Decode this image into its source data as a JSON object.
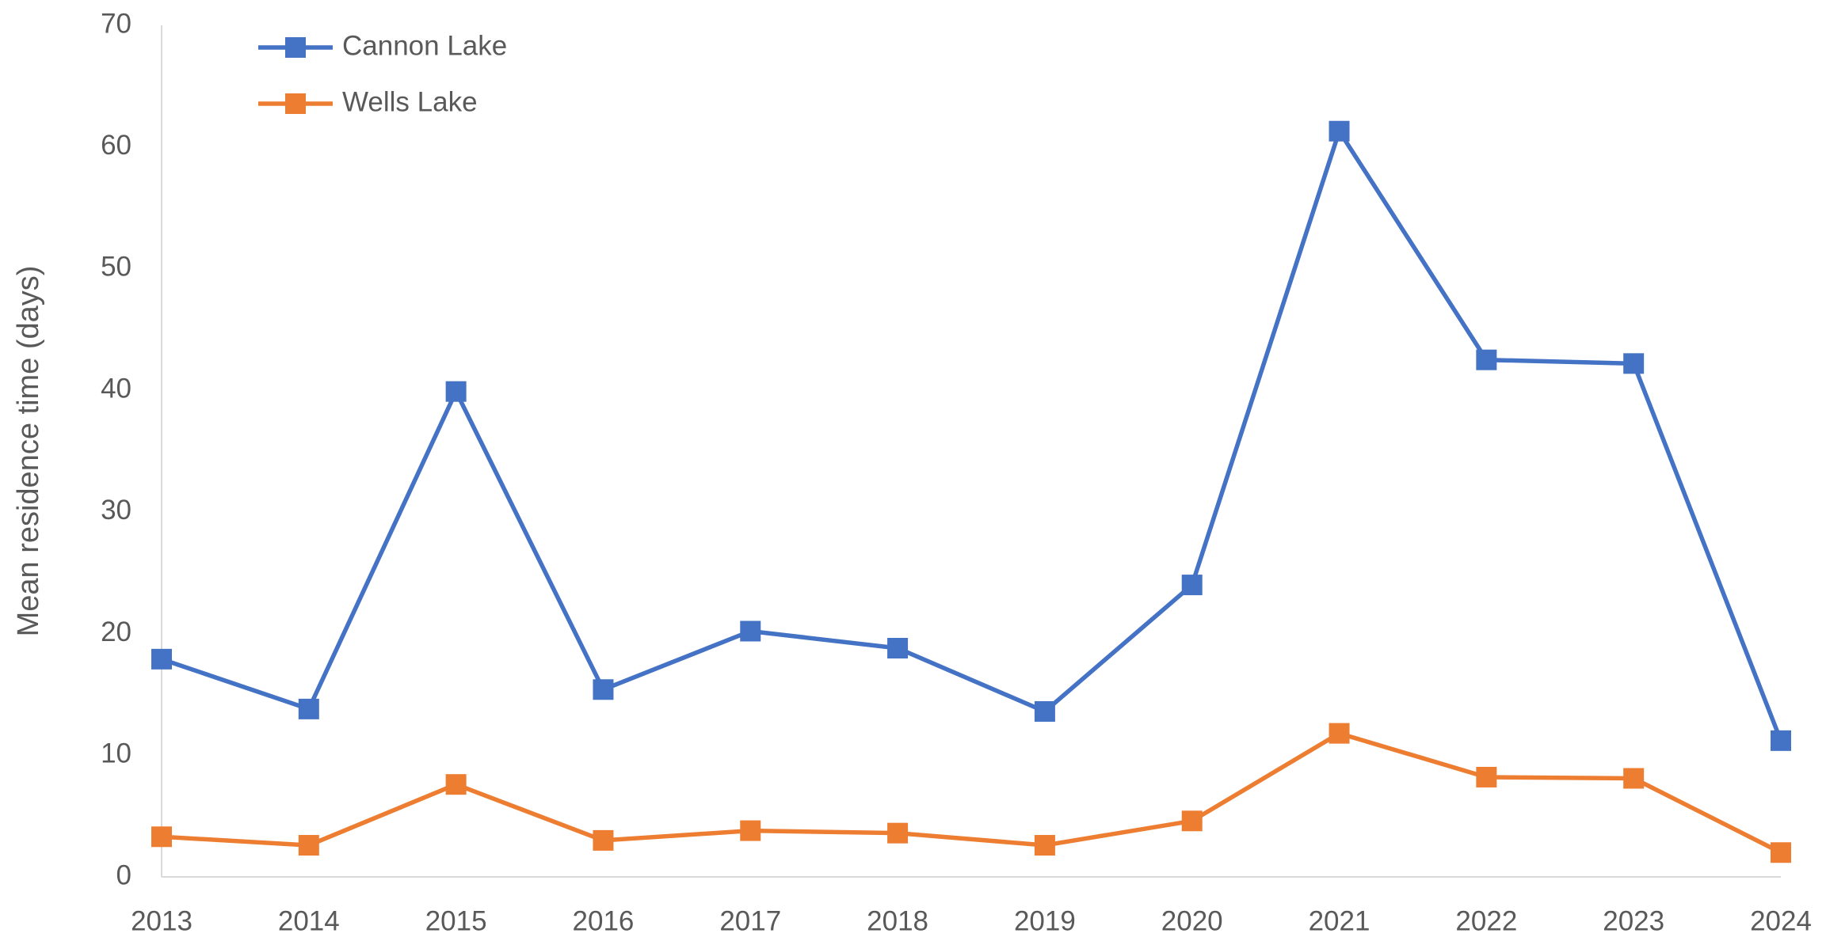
{
  "chart_data": {
    "type": "line",
    "y_label": "Mean residence time (days)",
    "categories": [
      "2013",
      "2014",
      "2015",
      "2016",
      "2017",
      "2018",
      "2019",
      "2020",
      "2021",
      "2022",
      "2023",
      "2024"
    ],
    "series": [
      {
        "name": "Cannon Lake",
        "color": "#4472c4",
        "values": [
          17.9,
          13.8,
          39.9,
          15.4,
          20.2,
          18.8,
          13.6,
          24.0,
          61.3,
          42.5,
          42.2,
          11.2
        ]
      },
      {
        "name": "Wells Lake",
        "color": "#ed7d31",
        "values": [
          3.3,
          2.6,
          7.6,
          3.0,
          3.8,
          3.6,
          2.6,
          4.6,
          11.8,
          8.2,
          8.1,
          2.0
        ]
      }
    ],
    "ylim": [
      0,
      70
    ],
    "yticks": [
      0,
      10,
      20,
      30,
      40,
      50,
      60,
      70
    ],
    "grid": false,
    "legend": "top-left"
  }
}
